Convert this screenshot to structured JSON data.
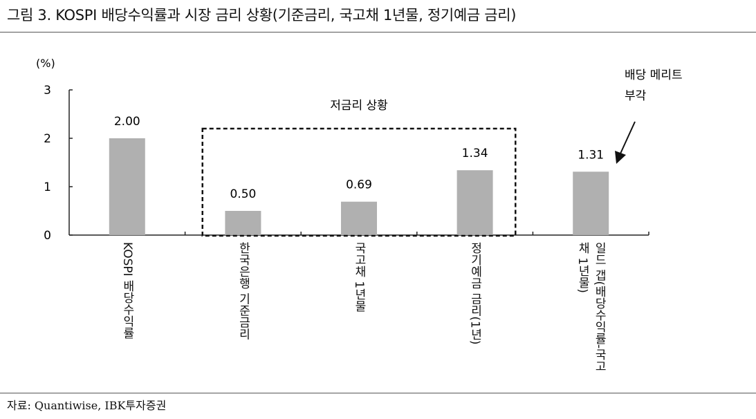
{
  "figure": {
    "title": "그림 3. KOSPI 배당수익률과 시장 금리 상황(기준금리, 국고채 1년물, 정기예금 금리)",
    "source": "자료: Quantiwise, IBK투자증권"
  },
  "chart_data": {
    "type": "bar",
    "unit_label": "(%)",
    "ylim": [
      0,
      3
    ],
    "yticks": [
      "0",
      "1",
      "2",
      "3"
    ],
    "categories": [
      "KOSPI 배당수익률",
      "한국은행 기준금리",
      "국고채 1년물",
      "정기예금 금리(1년)",
      "일드 갭(배당수익률-국고채 1년물)"
    ],
    "values": [
      2.0,
      0.5,
      0.69,
      1.34,
      1.31
    ],
    "value_labels": [
      "2.00",
      "0.50",
      "0.69",
      "1.34",
      "1.31"
    ],
    "bar_color": "#b0b0b0",
    "annotations": {
      "box_label": "저금리 상황",
      "arrow_label_line1": "배당 메리트",
      "arrow_label_line2": "부각"
    },
    "grid": false
  }
}
